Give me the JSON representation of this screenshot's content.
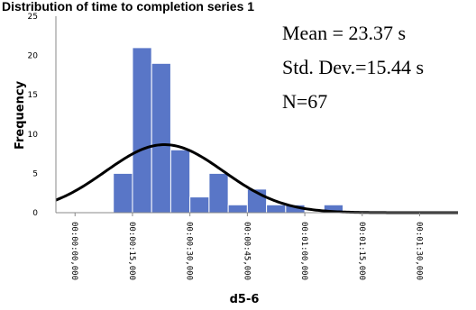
{
  "chart_data": {
    "type": "bar",
    "title": "Distribution of time to completion series 1",
    "xlabel": "d5-6",
    "ylabel": "Frequency",
    "ylim": [
      0,
      25
    ],
    "y_ticks": [
      "0",
      "5",
      "10",
      "15",
      "20",
      "25"
    ],
    "x_tick_labels": [
      "00:00:00,000",
      "00:00:15,000",
      "00:00:30,000",
      "00:00:45,000",
      "00:01:00,000",
      "00:01:15,000",
      "00:01:30,000"
    ],
    "bin_width_s": 5,
    "bins": [
      {
        "start_s": 10,
        "value": 5
      },
      {
        "start_s": 15,
        "value": 21
      },
      {
        "start_s": 20,
        "value": 19
      },
      {
        "start_s": 25,
        "value": 8
      },
      {
        "start_s": 30,
        "value": 2
      },
      {
        "start_s": 35,
        "value": 5
      },
      {
        "start_s": 40,
        "value": 1
      },
      {
        "start_s": 45,
        "value": 3
      },
      {
        "start_s": 50,
        "value": 1
      },
      {
        "start_s": 55,
        "value": 1
      },
      {
        "start_s": 65,
        "value": 1
      }
    ],
    "normal_curve": {
      "mean": 23.37,
      "sd": 15.44,
      "n": 67
    },
    "stats": {
      "mean": "Mean = 23.37 s",
      "sd": "Std. Dev.=15.44 s",
      "n": "N=67"
    },
    "grid": false,
    "colors": {
      "bar": "#5976c7",
      "curve": "#000000"
    }
  }
}
